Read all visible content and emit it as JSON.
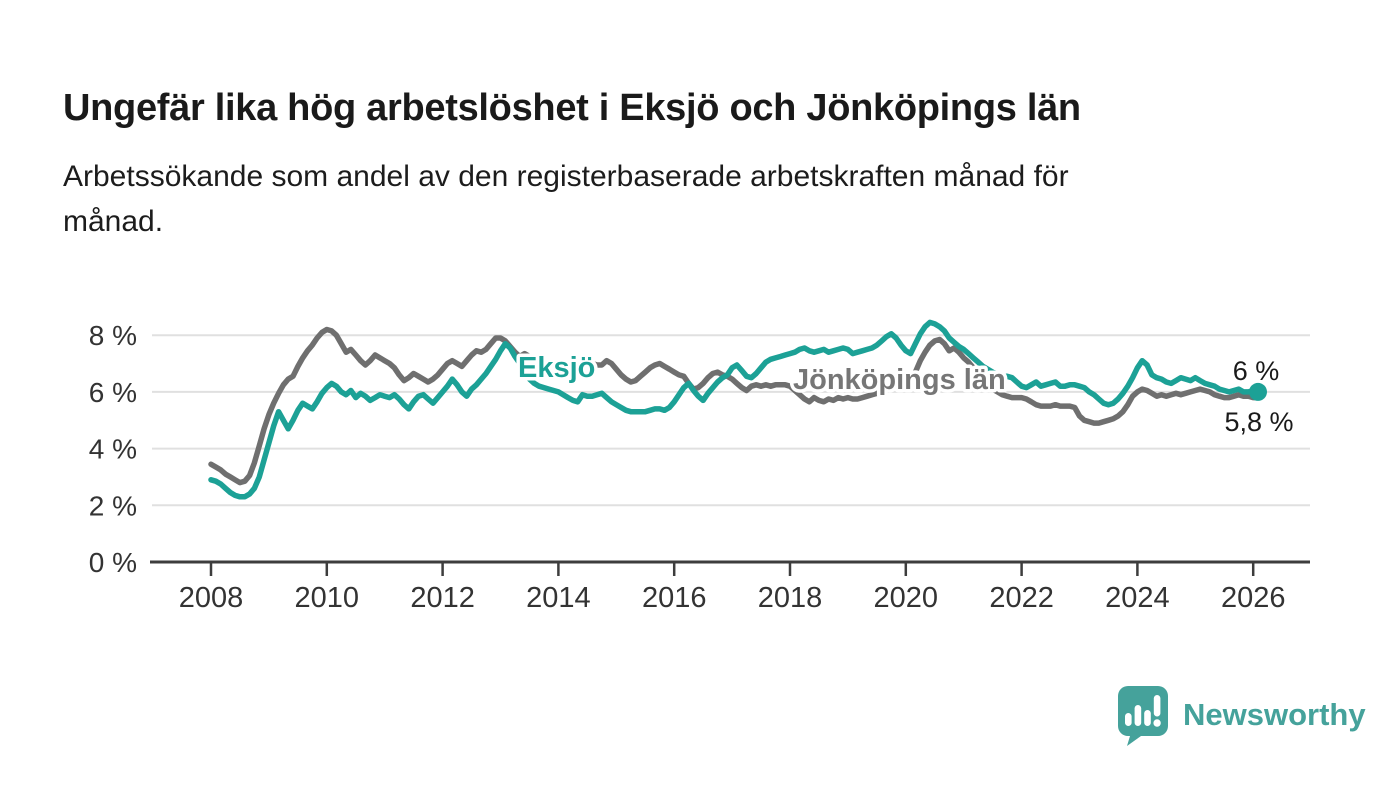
{
  "header": {
    "title": "Ungefär lika hög arbetslöshet i Eksjö och Jönköpings län",
    "subtitle": "Arbetssökande som andel av den registerbaserade arbetskraften månad för månad.",
    "subtitle_lines": [
      "Arbetssökande som andel av den registerbaserade arbetskraften månad för",
      "månad."
    ]
  },
  "chart_data": {
    "type": "line",
    "title": "Ungefär lika hög arbetslöshet i Eksjö och Jönköpings län",
    "subtitle": "Arbetssökande som andel av den registerbaserade arbetskraften månad för månad.",
    "unit": "%",
    "grid": "horizontal",
    "legend_position": "inline-labels",
    "frequency": "monthly",
    "start": "2008-01",
    "end": "2026-02",
    "x_axis": {
      "ticks": [
        2008,
        2010,
        2012,
        2014,
        2016,
        2018,
        2020,
        2022,
        2024,
        2026
      ]
    },
    "y_axis": {
      "ticks": [
        0,
        2,
        4,
        6,
        8
      ],
      "tick_labels": [
        "0 %",
        "2 %",
        "4 %",
        "6 %",
        "8 %"
      ],
      "range": [
        0,
        9
      ]
    },
    "colors": {
      "axis": "#3d3d3d",
      "grid": "#e0e0e0",
      "annotation": "#1a1a1a"
    },
    "series": [
      {
        "name": "Eksjö",
        "color": "#1CA196",
        "end_label": "6 %",
        "end_value": 6.0,
        "values": [
          2.9,
          2.85,
          2.75,
          2.6,
          2.45,
          2.35,
          2.3,
          2.3,
          2.4,
          2.6,
          3.0,
          3.6,
          4.2,
          4.8,
          5.3,
          5.0,
          4.7,
          5.0,
          5.35,
          5.6,
          5.5,
          5.4,
          5.65,
          5.95,
          6.15,
          6.3,
          6.2,
          6.0,
          5.9,
          6.05,
          5.8,
          5.95,
          5.85,
          5.7,
          5.8,
          5.9,
          5.85,
          5.8,
          5.9,
          5.75,
          5.55,
          5.4,
          5.65,
          5.85,
          5.9,
          5.75,
          5.6,
          5.8,
          6.0,
          6.2,
          6.45,
          6.25,
          6.0,
          5.85,
          6.1,
          6.25,
          6.45,
          6.65,
          6.9,
          7.15,
          7.45,
          7.7,
          7.55,
          7.25,
          7.0,
          6.7,
          6.45,
          6.3,
          6.2,
          6.15,
          6.1,
          6.05,
          6.0,
          5.9,
          5.8,
          5.7,
          5.65,
          5.9,
          5.85,
          5.85,
          5.9,
          5.95,
          5.8,
          5.65,
          5.55,
          5.45,
          5.35,
          5.3,
          5.3,
          5.3,
          5.3,
          5.35,
          5.4,
          5.4,
          5.35,
          5.45,
          5.65,
          5.9,
          6.15,
          6.3,
          6.05,
          5.85,
          5.7,
          5.95,
          6.15,
          6.35,
          6.5,
          6.6,
          6.85,
          6.95,
          6.75,
          6.55,
          6.5,
          6.65,
          6.85,
          7.05,
          7.15,
          7.2,
          7.25,
          7.3,
          7.35,
          7.4,
          7.5,
          7.55,
          7.45,
          7.4,
          7.45,
          7.5,
          7.4,
          7.45,
          7.5,
          7.55,
          7.5,
          7.35,
          7.4,
          7.45,
          7.5,
          7.55,
          7.65,
          7.8,
          7.95,
          8.05,
          7.9,
          7.65,
          7.45,
          7.35,
          7.7,
          8.05,
          8.3,
          8.45,
          8.4,
          8.3,
          8.15,
          7.9,
          7.75,
          7.6,
          7.5,
          7.35,
          7.2,
          7.05,
          6.9,
          6.8,
          6.7,
          6.6,
          6.55,
          6.55,
          6.5,
          6.35,
          6.2,
          6.15,
          6.25,
          6.35,
          6.2,
          6.25,
          6.3,
          6.35,
          6.2,
          6.2,
          6.25,
          6.25,
          6.2,
          6.15,
          6.0,
          5.9,
          5.75,
          5.6,
          5.55,
          5.6,
          5.75,
          5.95,
          6.2,
          6.5,
          6.85,
          7.1,
          6.95,
          6.6,
          6.5,
          6.45,
          6.35,
          6.3,
          6.4,
          6.5,
          6.45,
          6.4,
          6.5,
          6.4,
          6.3,
          6.25,
          6.2,
          6.1,
          6.05,
          6.0,
          6.05,
          6.1,
          6.0,
          6.0,
          6.05,
          6.0
        ]
      },
      {
        "name": "Jönköpings län",
        "color": "#6F6F6F",
        "end_label": "5,8 %",
        "end_value": 5.8,
        "values": [
          3.45,
          3.35,
          3.25,
          3.1,
          3.0,
          2.9,
          2.8,
          2.85,
          3.05,
          3.5,
          4.1,
          4.7,
          5.2,
          5.6,
          5.95,
          6.25,
          6.45,
          6.55,
          6.9,
          7.2,
          7.45,
          7.65,
          7.9,
          8.1,
          8.2,
          8.15,
          8.0,
          7.7,
          7.4,
          7.5,
          7.3,
          7.1,
          6.95,
          7.1,
          7.3,
          7.2,
          7.1,
          7.0,
          6.85,
          6.6,
          6.4,
          6.5,
          6.65,
          6.55,
          6.45,
          6.35,
          6.45,
          6.6,
          6.8,
          7.0,
          7.1,
          7.0,
          6.9,
          7.1,
          7.3,
          7.45,
          7.4,
          7.5,
          7.7,
          7.9,
          7.9,
          7.8,
          7.6,
          7.4,
          7.25,
          7.35,
          7.25,
          7.15,
          7.05,
          6.9,
          6.75,
          6.65,
          6.6,
          6.55,
          6.6,
          6.7,
          6.8,
          6.9,
          6.95,
          7.0,
          6.95,
          6.95,
          7.1,
          7.0,
          6.8,
          6.6,
          6.45,
          6.35,
          6.4,
          6.55,
          6.7,
          6.85,
          6.95,
          7.0,
          6.9,
          6.8,
          6.7,
          6.6,
          6.55,
          6.3,
          6.1,
          6.15,
          6.3,
          6.5,
          6.65,
          6.7,
          6.6,
          6.55,
          6.45,
          6.3,
          6.15,
          6.05,
          6.2,
          6.25,
          6.2,
          6.25,
          6.2,
          6.25,
          6.25,
          6.25,
          6.2,
          6.05,
          5.9,
          5.75,
          5.65,
          5.8,
          5.7,
          5.65,
          5.75,
          5.7,
          5.8,
          5.75,
          5.8,
          5.75,
          5.75,
          5.8,
          5.85,
          5.9,
          5.95,
          6.0,
          6.05,
          6.15,
          6.25,
          6.35,
          6.45,
          6.4,
          6.7,
          7.1,
          7.4,
          7.65,
          7.8,
          7.85,
          7.7,
          7.45,
          7.55,
          7.4,
          7.2,
          7.05,
          6.85,
          6.65,
          6.45,
          6.25,
          6.1,
          6.0,
          5.9,
          5.85,
          5.8,
          5.8,
          5.8,
          5.75,
          5.65,
          5.55,
          5.5,
          5.5,
          5.5,
          5.55,
          5.5,
          5.5,
          5.5,
          5.45,
          5.15,
          5.0,
          4.95,
          4.9,
          4.9,
          4.95,
          5.0,
          5.05,
          5.15,
          5.3,
          5.55,
          5.85,
          6.0,
          6.1,
          6.05,
          5.95,
          5.85,
          5.9,
          5.85,
          5.9,
          5.95,
          5.9,
          5.95,
          6.0,
          6.05,
          6.1,
          6.05,
          6.0,
          5.9,
          5.85,
          5.8,
          5.8,
          5.85,
          5.9,
          5.85,
          5.85,
          5.8,
          5.8
        ]
      }
    ]
  },
  "footer": {
    "brand": "Newsworthy",
    "brand_color": "#45A29B"
  }
}
